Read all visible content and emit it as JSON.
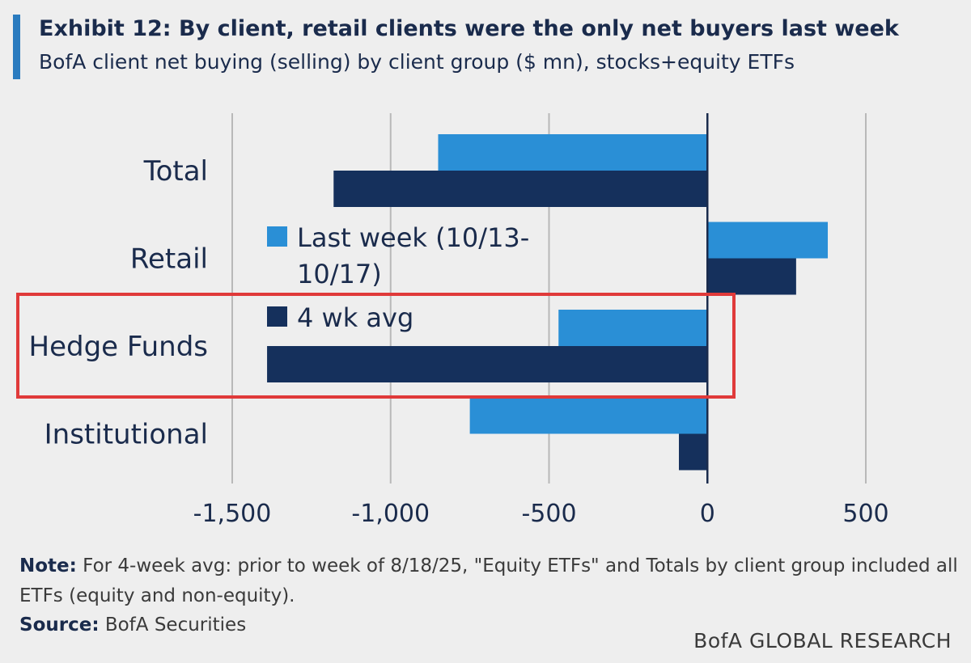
{
  "header": {
    "title": "Exhibit 12: By client, retail clients were the only net buyers last week",
    "subtitle": "BofA client net buying (selling) by client group ($ mn), stocks+equity ETFs"
  },
  "colors": {
    "last_week": "#2a8fd6",
    "four_wk_avg": "#15305c",
    "highlight_box": "#e03a3a",
    "gridline": "#b8b8b8",
    "title_accent": "#2a7bbf"
  },
  "chart_data": {
    "type": "bar",
    "orientation": "horizontal",
    "categories": [
      "Total",
      "Retail",
      "Hedge Funds",
      "Institutional"
    ],
    "series": [
      {
        "name": "Last week (10/13-10/17)",
        "values": [
          -850,
          380,
          -470,
          -750
        ]
      },
      {
        "name": "4 wk avg",
        "values": [
          -1180,
          280,
          -1390,
          -90
        ]
      }
    ],
    "legend_lines": [
      [
        "Last week (10/13-",
        "10/17)"
      ],
      [
        "4 wk avg"
      ]
    ],
    "x_ticks": [
      -1500,
      -1000,
      -500,
      0,
      500
    ],
    "x_tick_labels": [
      "-1,500",
      "-1,000",
      "-500",
      "0",
      "500"
    ],
    "xlim": [
      -1500,
      500
    ],
    "grid": true,
    "legend_position": "center-left",
    "highlighted_category": "Hedge Funds"
  },
  "footer": {
    "note_label": "Note:",
    "note_text": " For 4-week avg: prior to week of 8/18/25, \"Equity ETFs\" and Totals by client group included all ETFs (equity and non-equity).",
    "source_label": "Source:",
    "source_text": " BofA Securities",
    "brand": "BofA GLOBAL RESEARCH"
  }
}
